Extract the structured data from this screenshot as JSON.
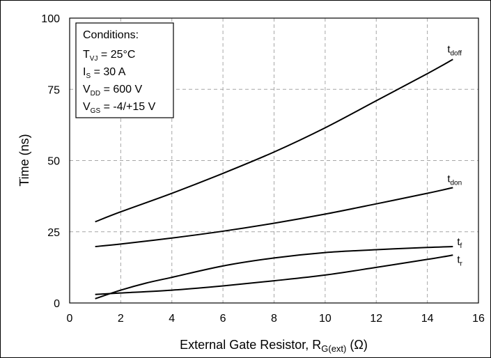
{
  "chart_data": {
    "type": "line",
    "xlabel": {
      "main": "External Gate Resistor, R",
      "sub": "G(ext)",
      "unit": " (Ω)"
    },
    "ylabel": "Time (ns)",
    "xlim": [
      0,
      16
    ],
    "ylim": [
      0,
      100
    ],
    "x_ticks": [
      "0",
      "2",
      "4",
      "6",
      "8",
      "10",
      "12",
      "14",
      "16"
    ],
    "y_ticks": [
      "0",
      "25",
      "50",
      "75",
      "100"
    ],
    "grid": "dashed",
    "conditions": {
      "title": "Conditions:",
      "lines": [
        {
          "main": "T",
          "sub": "VJ",
          "rest": " = 25°C"
        },
        {
          "main": "I",
          "sub": "S",
          "rest": " = 30 A"
        },
        {
          "main": "V",
          "sub": "DD",
          "rest": " = 600 V"
        },
        {
          "main": "V",
          "sub": "GS",
          "rest": " = -4/+15 V"
        }
      ]
    },
    "series": [
      {
        "main": "t",
        "sub": "doff",
        "x": [
          1,
          2,
          4,
          6,
          8,
          10,
          12,
          14,
          15
        ],
        "y": [
          28.5,
          32,
          38.5,
          45.5,
          53,
          61.5,
          71,
          80.5,
          85.5
        ]
      },
      {
        "main": "t",
        "sub": "don",
        "x": [
          1,
          2,
          4,
          6,
          8,
          10,
          12,
          14,
          15
        ],
        "y": [
          19.8,
          20.7,
          22.8,
          25.2,
          28,
          31.2,
          34.8,
          38.5,
          40.5
        ]
      },
      {
        "main": "t",
        "sub": "f",
        "x": [
          1,
          2,
          3,
          4,
          6,
          8,
          10,
          12,
          14,
          15
        ],
        "y": [
          1.5,
          4.5,
          7,
          9,
          13,
          15.8,
          17.7,
          18.7,
          19.5,
          19.8
        ]
      },
      {
        "main": "t",
        "sub": "r",
        "x": [
          1,
          2,
          4,
          6,
          8,
          10,
          12,
          14,
          15
        ],
        "y": [
          3,
          3.5,
          4.5,
          6,
          7.8,
          9.8,
          12.5,
          15.3,
          16.8
        ]
      }
    ]
  }
}
